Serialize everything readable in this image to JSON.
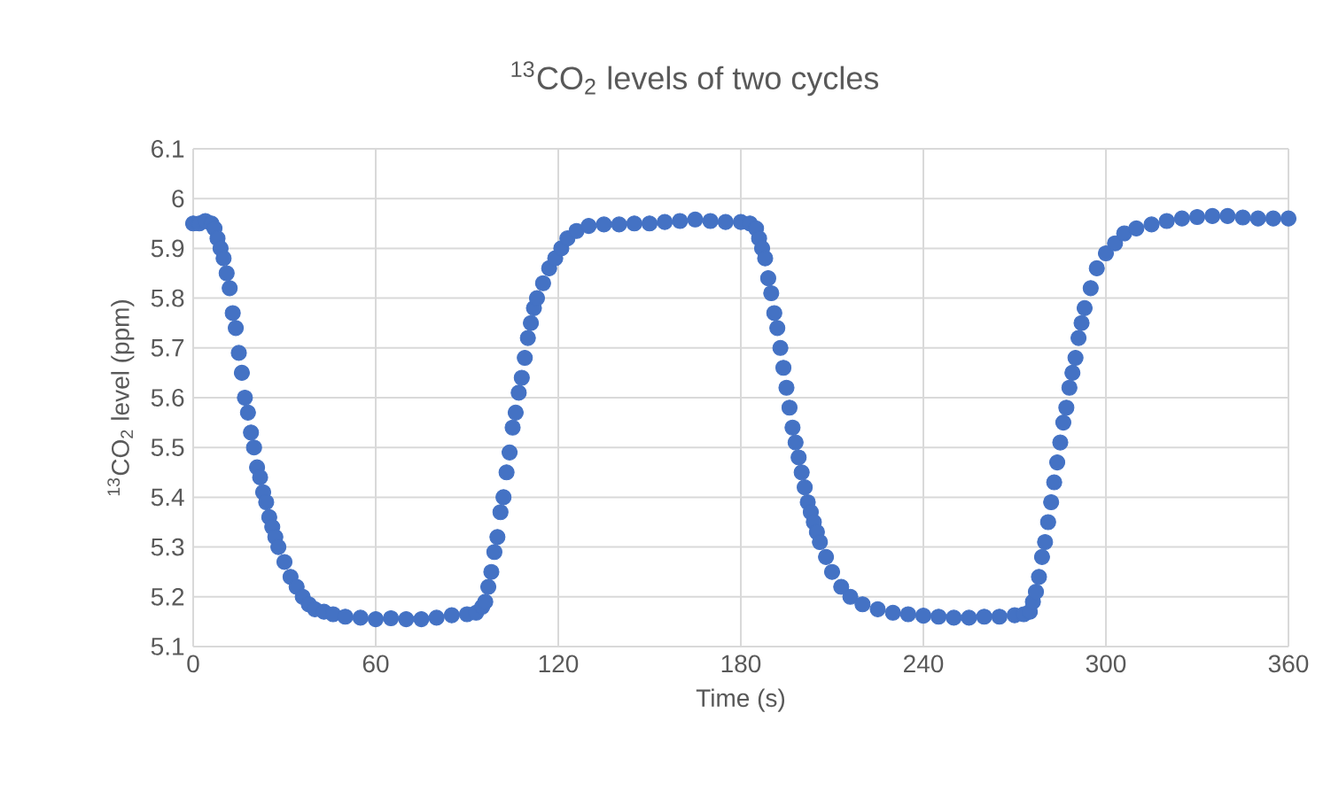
{
  "chart_data": {
    "type": "scatter",
    "title": "$^{13}$CO$_{2}$ levels of two cycles",
    "xlabel": "Time (s)",
    "ylabel": "$^{13}$CO$_{2}$ level (ppm)",
    "xlim": [
      0,
      360
    ],
    "xticks": [
      0,
      60,
      120,
      180,
      240,
      300,
      360
    ],
    "ylim": [
      5.1,
      6.1
    ],
    "yticks": [
      5.1,
      5.2,
      5.3,
      5.4,
      5.5,
      5.6,
      5.7,
      5.8,
      5.9,
      6,
      6.1
    ],
    "grid": true,
    "marker": "circle",
    "color": "#4472c4",
    "x": [
      0,
      2,
      4,
      6,
      7,
      8,
      9,
      10,
      11,
      12,
      13,
      14,
      15,
      16,
      17,
      18,
      19,
      20,
      21,
      22,
      23,
      24,
      25,
      26,
      27,
      28,
      30,
      32,
      34,
      36,
      38,
      40,
      43,
      46,
      50,
      55,
      60,
      65,
      70,
      75,
      80,
      85,
      90,
      93,
      95,
      96,
      97,
      98,
      99,
      100,
      101,
      102,
      103,
      104,
      105,
      106,
      107,
      108,
      109,
      110,
      111,
      112,
      113,
      115,
      117,
      119,
      121,
      123,
      126,
      130,
      135,
      140,
      145,
      150,
      155,
      160,
      165,
      170,
      175,
      180,
      183,
      185,
      186,
      187,
      188,
      189,
      190,
      191,
      192,
      193,
      194,
      195,
      196,
      197,
      198,
      199,
      200,
      201,
      202,
      203,
      204,
      205,
      206,
      208,
      210,
      213,
      216,
      220,
      225,
      230,
      235,
      240,
      245,
      250,
      255,
      260,
      265,
      270,
      273,
      275,
      276,
      277,
      278,
      279,
      280,
      281,
      282,
      283,
      284,
      285,
      286,
      287,
      288,
      289,
      290,
      291,
      292,
      293,
      295,
      297,
      300,
      303,
      306,
      310,
      315,
      320,
      325,
      330,
      335,
      340,
      345,
      350,
      355,
      360
    ],
    "values": [
      5.95,
      5.95,
      5.955,
      5.95,
      5.94,
      5.92,
      5.9,
      5.88,
      5.85,
      5.82,
      5.77,
      5.74,
      5.69,
      5.65,
      5.6,
      5.57,
      5.53,
      5.5,
      5.46,
      5.44,
      5.41,
      5.39,
      5.36,
      5.34,
      5.32,
      5.3,
      5.27,
      5.24,
      5.22,
      5.2,
      5.185,
      5.175,
      5.17,
      5.165,
      5.16,
      5.158,
      5.155,
      5.157,
      5.155,
      5.155,
      5.158,
      5.163,
      5.165,
      5.168,
      5.18,
      5.19,
      5.22,
      5.25,
      5.29,
      5.32,
      5.37,
      5.4,
      5.45,
      5.49,
      5.54,
      5.57,
      5.61,
      5.64,
      5.68,
      5.72,
      5.75,
      5.78,
      5.8,
      5.83,
      5.86,
      5.88,
      5.9,
      5.92,
      5.935,
      5.945,
      5.948,
      5.948,
      5.95,
      5.95,
      5.953,
      5.955,
      5.958,
      5.955,
      5.953,
      5.953,
      5.95,
      5.94,
      5.92,
      5.9,
      5.88,
      5.84,
      5.81,
      5.77,
      5.74,
      5.7,
      5.66,
      5.62,
      5.58,
      5.54,
      5.51,
      5.48,
      5.45,
      5.42,
      5.39,
      5.37,
      5.35,
      5.33,
      5.31,
      5.28,
      5.25,
      5.22,
      5.2,
      5.185,
      5.175,
      5.168,
      5.165,
      5.162,
      5.16,
      5.158,
      5.158,
      5.16,
      5.16,
      5.163,
      5.165,
      5.17,
      5.19,
      5.21,
      5.24,
      5.28,
      5.31,
      5.35,
      5.39,
      5.43,
      5.47,
      5.51,
      5.55,
      5.58,
      5.62,
      5.65,
      5.68,
      5.72,
      5.75,
      5.78,
      5.82,
      5.86,
      5.89,
      5.91,
      5.93,
      5.94,
      5.948,
      5.955,
      5.96,
      5.963,
      5.965,
      5.965,
      5.962,
      5.96,
      5.96,
      5.96
    ]
  }
}
